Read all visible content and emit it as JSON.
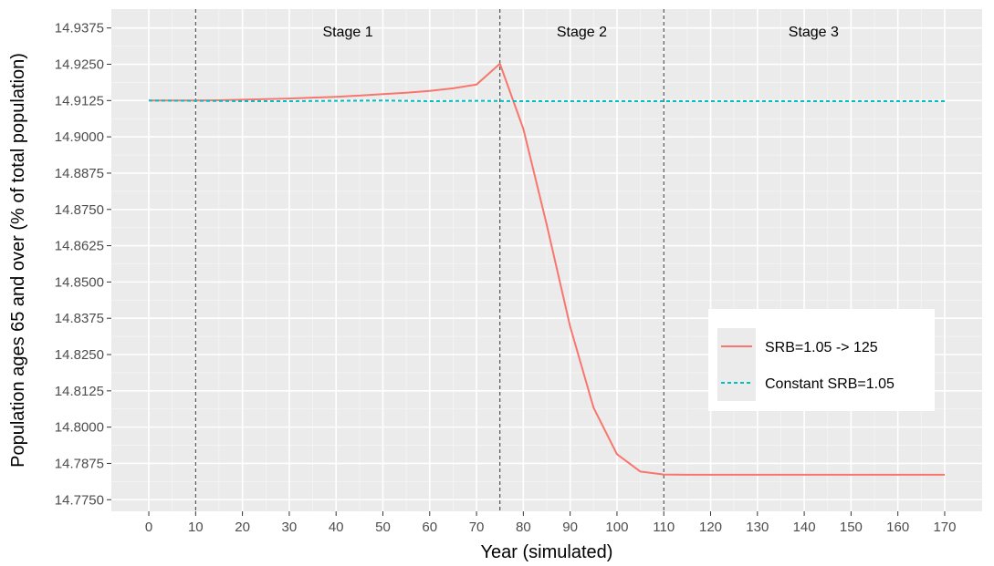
{
  "chart_data": {
    "type": "line",
    "xlabel": "Year (simulated)",
    "ylabel": "Population ages 65 and over (% of total population)",
    "xlim": [
      -8,
      178
    ],
    "ylim": [
      14.771,
      14.944
    ],
    "x_ticks": [
      0,
      10,
      20,
      30,
      40,
      50,
      60,
      70,
      80,
      90,
      100,
      110,
      120,
      130,
      140,
      150,
      160,
      170
    ],
    "y_ticks": [
      14.775,
      14.7875,
      14.8,
      14.8125,
      14.825,
      14.8375,
      14.85,
      14.8625,
      14.875,
      14.8875,
      14.9,
      14.9125,
      14.925,
      14.9375
    ],
    "y_tick_labels": [
      "14.7750",
      "14.7875",
      "14.8000",
      "14.8125",
      "14.8250",
      "14.8375",
      "14.8500",
      "14.8625",
      "14.8750",
      "14.8875",
      "14.9000",
      "14.9125",
      "14.9250",
      "14.9375"
    ],
    "x_tick_labels": [
      "0",
      "10",
      "20",
      "30",
      "40",
      "50",
      "60",
      "70",
      "80",
      "90",
      "100",
      "110",
      "120",
      "130",
      "140",
      "150",
      "160",
      "170"
    ],
    "stage_lines": [
      10,
      75,
      110
    ],
    "stage_labels": [
      {
        "text": "Stage 1",
        "x": 42.5
      },
      {
        "text": "Stage 2",
        "x": 92.5
      },
      {
        "text": "Stage 3",
        "x": 142
      }
    ],
    "grid": true,
    "legend_position": "right",
    "series": [
      {
        "name": "SRB=1.05 -> 125",
        "color": "#F8766D",
        "dash": "solid",
        "x": [
          0,
          5,
          10,
          15,
          20,
          25,
          30,
          35,
          40,
          45,
          50,
          55,
          60,
          65,
          70,
          75,
          80,
          85,
          90,
          95,
          100,
          105,
          110,
          115,
          120,
          125,
          130,
          135,
          140,
          145,
          150,
          155,
          160,
          165,
          170
        ],
        "y": [
          14.9125,
          14.9125,
          14.9125,
          14.9126,
          14.9128,
          14.913,
          14.9132,
          14.9135,
          14.9138,
          14.9142,
          14.9147,
          14.9152,
          14.9158,
          14.9167,
          14.918,
          14.9252,
          14.9027,
          14.8697,
          14.8347,
          14.8067,
          14.7907,
          14.7847,
          14.7837,
          14.7836,
          14.7836,
          14.7836,
          14.7836,
          14.7836,
          14.7836,
          14.7836,
          14.7836,
          14.7836,
          14.7836,
          14.7836,
          14.7836
        ]
      },
      {
        "name": "Constant SRB=1.05",
        "color": "#00BFC4",
        "dash": "dashed",
        "x": [
          0,
          10,
          20,
          30,
          40,
          50,
          60,
          70,
          80,
          90,
          100,
          110,
          120,
          130,
          140,
          150,
          160,
          170
        ],
        "y": [
          14.9125,
          14.9124,
          14.9123,
          14.9123,
          14.9124,
          14.9125,
          14.9123,
          14.9124,
          14.9123,
          14.9123,
          14.9123,
          14.9123,
          14.9123,
          14.9123,
          14.9123,
          14.9123,
          14.9123,
          14.9123
        ]
      }
    ]
  }
}
